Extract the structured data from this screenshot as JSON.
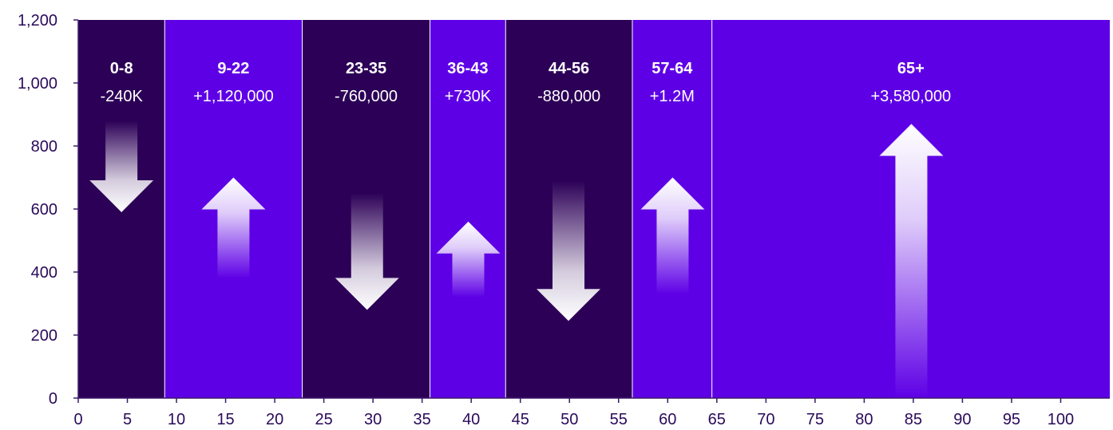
{
  "colors": {
    "decline_band": "#2c0057",
    "growth_band": "#5e00e6",
    "axis": "#3a1a6a",
    "arrow": "#ffffff"
  },
  "chart_data": {
    "type": "bar",
    "title": "",
    "xlabel": "",
    "ylabel": "",
    "xlim": [
      0,
      105
    ],
    "ylim": [
      0,
      1200
    ],
    "x_ticks": [
      0,
      5,
      10,
      15,
      20,
      25,
      30,
      35,
      40,
      45,
      50,
      55,
      60,
      65,
      70,
      75,
      80,
      85,
      90,
      95,
      100
    ],
    "y_ticks": [
      0,
      200,
      400,
      600,
      800,
      1000,
      1200
    ],
    "y_tick_labels": [
      "0",
      "200",
      "400",
      "600",
      "800",
      "1,000",
      "1,200"
    ],
    "grid": false,
    "bands": [
      {
        "label": "0-8",
        "change": "-240K",
        "x_start": 0,
        "x_end": 8.8,
        "direction": "down",
        "arrow_x": 4.4,
        "arrow_top": 880,
        "arrow_tip": 590
      },
      {
        "label": "9-22",
        "change": "+1,120,000",
        "x_start": 8.8,
        "x_end": 22.8,
        "direction": "up",
        "arrow_x": 15.8,
        "arrow_top": 700,
        "arrow_tail": 380
      },
      {
        "label": "23-35",
        "change": "-760,000",
        "x_start": 22.8,
        "x_end": 35.8,
        "direction": "down",
        "arrow_x": 29.4,
        "arrow_top": 650,
        "arrow_tip": 280
      },
      {
        "label": "36-43",
        "change": "+730K",
        "x_start": 35.8,
        "x_end": 43.5,
        "direction": "up",
        "arrow_x": 39.7,
        "arrow_top": 560,
        "arrow_tail": 320
      },
      {
        "label": "44-56",
        "change": "-880,000",
        "x_start": 43.5,
        "x_end": 56.4,
        "direction": "down",
        "arrow_x": 49.9,
        "arrow_top": 690,
        "arrow_tip": 245
      },
      {
        "label": "57-64",
        "change": "+1.2M",
        "x_start": 56.4,
        "x_end": 64.5,
        "direction": "up",
        "arrow_x": 60.5,
        "arrow_top": 700,
        "arrow_tail": 330
      },
      {
        "label": "65+",
        "change": "+3,580,000",
        "x_start": 64.5,
        "x_end": 105,
        "direction": "up",
        "arrow_x": 84.8,
        "arrow_top": 870,
        "arrow_tail": 0
      }
    ]
  }
}
